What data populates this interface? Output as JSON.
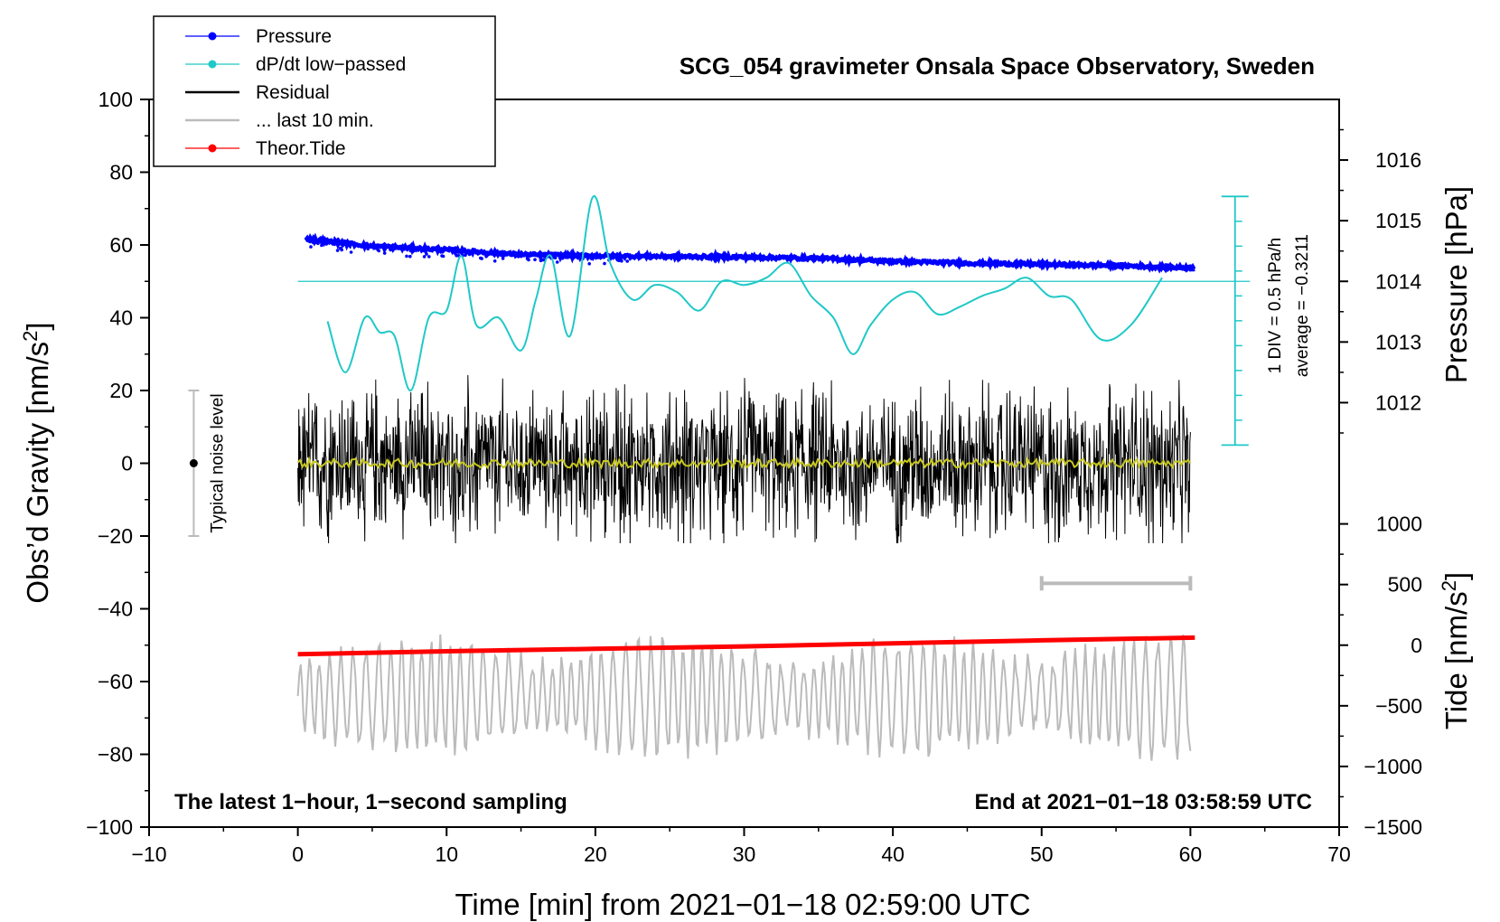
{
  "chart_data": {
    "type": "line",
    "title": "SCG_054 gravimeter Onsala Space Observatory, Sweden",
    "xlabel": "Time [min] from 2021−01−18 02:59:00 UTC",
    "ylabel_left": "Obs’d Gravity [nm/s",
    "ylabel_left_sup": "2",
    "ylabel_left_end": "]",
    "ylabel_right_pressure": "Pressure [hPa]",
    "ylabel_right_tide": "Tide [nm/s",
    "ylabel_right_tide_sup": "2",
    "ylabel_right_tide_end": "]",
    "xlim": [
      -10,
      70
    ],
    "ylim_left": [
      -100,
      100
    ],
    "x_ticks": [
      {
        "value": -10,
        "label": "−10"
      },
      {
        "value": 0,
        "label": "0"
      },
      {
        "value": 10,
        "label": "10"
      },
      {
        "value": 20,
        "label": "20"
      },
      {
        "value": 30,
        "label": "30"
      },
      {
        "value": 40,
        "label": "40"
      },
      {
        "value": 50,
        "label": "50"
      },
      {
        "value": 60,
        "label": "60"
      },
      {
        "value": 70,
        "label": "70"
      }
    ],
    "y_ticks_left": [
      {
        "value": 100,
        "label": "100"
      },
      {
        "value": 80,
        "label": "80"
      },
      {
        "value": 60,
        "label": "60"
      },
      {
        "value": 40,
        "label": "40"
      },
      {
        "value": 20,
        "label": "20"
      },
      {
        "value": 0,
        "label": "0"
      },
      {
        "value": -20,
        "label": "−20"
      },
      {
        "value": -40,
        "label": "−40"
      },
      {
        "value": -60,
        "label": "−60"
      },
      {
        "value": -80,
        "label": "−80"
      },
      {
        "value": -100,
        "label": "−100"
      }
    ],
    "pressure_axis": {
      "gravity_per_hpa": 16.67,
      "ref_hpa": 1014,
      "ref_gravity": 50,
      "ticks": [
        {
          "value": 1016,
          "label": "1016"
        },
        {
          "value": 1015,
          "label": "1015"
        },
        {
          "value": 1014,
          "label": "1014"
        },
        {
          "value": 1013,
          "label": "1013"
        },
        {
          "value": 1012,
          "label": "1012"
        }
      ]
    },
    "tide_axis": {
      "gravity_per_nms2": 0.03333,
      "ref_tide": 0,
      "ref_gravity": -50,
      "ticks": [
        {
          "value": 1000,
          "label": "1000"
        },
        {
          "value": 500,
          "label": "500"
        },
        {
          "value": 0,
          "label": "0"
        },
        {
          "value": -500,
          "label": "−500"
        },
        {
          "value": -1000,
          "label": "−1000"
        },
        {
          "value": -1500,
          "label": "−1500"
        }
      ]
    },
    "legend": [
      {
        "name": "Pressure",
        "color": "#0000ff",
        "marker": true
      },
      {
        "name": "dP/dt low−passed",
        "color": "#20c8c8",
        "marker": true
      },
      {
        "name": "Residual",
        "color": "#000000",
        "marker": false
      },
      {
        "name": "... last 10 min.",
        "color": "#bbbbbb",
        "marker": false
      },
      {
        "name": "Theor.Tide",
        "color": "#ff0000",
        "marker": true
      }
    ],
    "series": [
      {
        "name": "Pressure",
        "color": "#0000ff",
        "kind": "scatter",
        "unit": "hPa",
        "x": [
          0.5,
          5,
          10,
          15,
          20,
          25,
          30,
          35,
          40,
          45,
          50,
          55,
          60.3
        ],
        "values": [
          1014.7,
          1014.58,
          1014.52,
          1014.44,
          1014.42,
          1014.41,
          1014.4,
          1014.38,
          1014.33,
          1014.3,
          1014.28,
          1014.26,
          1014.22
        ]
      },
      {
        "name": "dP/dt low−passed",
        "color": "#20c8c8",
        "kind": "line",
        "x": [
          2,
          3.2,
          4.5,
          5.5,
          6.5,
          7.6,
          8.8,
          10,
          11,
          12,
          13.5,
          15,
          16,
          17,
          18.3,
          19.8,
          21,
          22.5,
          24,
          25.5,
          27,
          28.5,
          30,
          31.5,
          33,
          34.5,
          36,
          37.3,
          38.5,
          40,
          41.5,
          43,
          44.5,
          46,
          47.5,
          49,
          50.5,
          52,
          54,
          56,
          58.1
        ],
        "values": [
          39,
          25,
          40,
          36,
          35,
          20,
          40,
          42,
          57,
          38,
          40,
          31,
          45,
          57,
          35,
          73,
          55,
          45,
          49,
          47,
          42,
          50,
          49,
          51,
          55,
          46,
          40,
          30,
          38,
          45,
          47,
          41,
          43,
          46,
          48,
          51,
          46,
          45,
          34,
          38,
          51
        ]
      },
      {
        "name": "Residual",
        "color": "#000000",
        "kind": "noise",
        "x_range": [
          0,
          60
        ],
        "amplitude": 26,
        "envelope": [
          -22,
          25
        ]
      },
      {
        "name": "... last 10 min.",
        "color": "#bbbbbb",
        "kind": "oscillation",
        "x_range": [
          0,
          60
        ],
        "center": -64,
        "amplitude": 15,
        "envelope": [
          -84,
          -40
        ]
      },
      {
        "name": "Theor.Tide",
        "color": "#ff0000",
        "kind": "line",
        "unit": "nm/s^2",
        "x": [
          0,
          10,
          20,
          30,
          40,
          50,
          60.3
        ],
        "values": [
          -75,
          -50,
          -30,
          -10,
          15,
          40,
          62
        ]
      },
      {
        "name": "smoothed residual",
        "color": "#c8c820",
        "kind": "noise",
        "x_range": [
          0,
          60
        ],
        "amplitude": 1.2,
        "envelope": [
          -1,
          1
        ]
      }
    ],
    "annotations": {
      "noise_bar": {
        "x": -7,
        "y_low": -20,
        "y_high": 20,
        "center": 0,
        "label": "Typical noise level"
      },
      "last10_bar": {
        "x_start": 50,
        "x_end": 60,
        "y": -33
      },
      "pressure_scale": {
        "hpa_top": 1015.4,
        "hpa_bottom": 1011.3,
        "x": 63,
        "line1": "1 DIV = 0.5 hPa/h",
        "line2": "average = −0.3211"
      },
      "bottom_left": "The latest 1−hour, 1−second sampling",
      "bottom_right": "End at 2021−01−18 03:58:59 UTC"
    }
  }
}
